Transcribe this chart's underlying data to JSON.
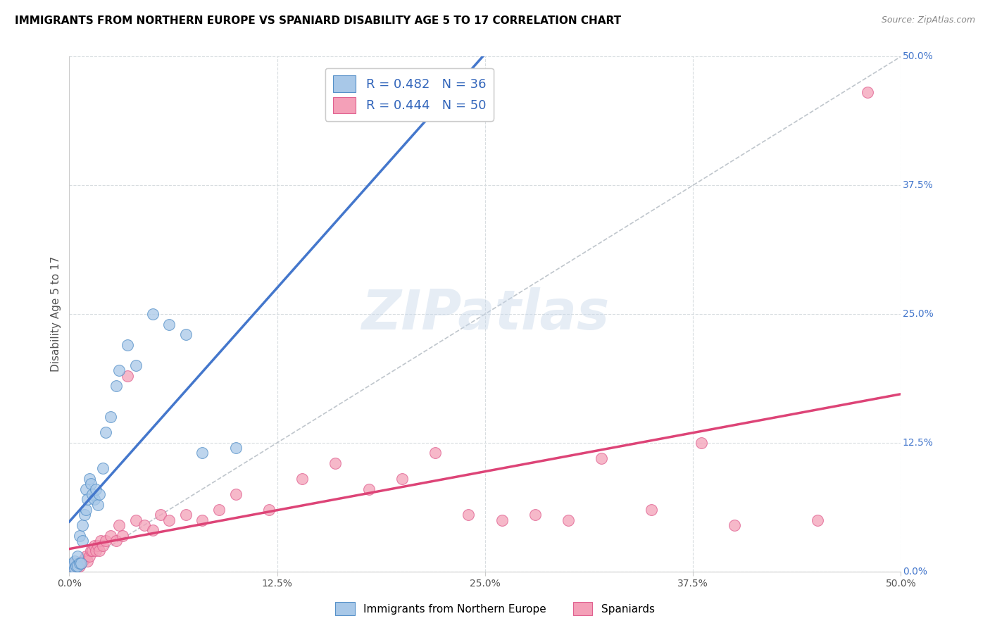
{
  "title": "IMMIGRANTS FROM NORTHERN EUROPE VS SPANIARD DISABILITY AGE 5 TO 17 CORRELATION CHART",
  "source": "Source: ZipAtlas.com",
  "ylabel": "Disability Age 5 to 17",
  "legend_label1": "R = 0.482   N = 36",
  "legend_label2": "R = 0.444   N = 50",
  "legend_bottom1": "Immigrants from Northern Europe",
  "legend_bottom2": "Spaniards",
  "blue_fill": "#a8c8e8",
  "pink_fill": "#f4a0b8",
  "blue_edge": "#5590c8",
  "pink_edge": "#e06090",
  "blue_line": "#4477cc",
  "pink_line": "#dd4477",
  "diagonal_color": "#b0b8c0",
  "blue_points": [
    [
      0.1,
      0.5
    ],
    [
      0.2,
      0.8
    ],
    [
      0.3,
      0.3
    ],
    [
      0.3,
      1.0
    ],
    [
      0.4,
      0.5
    ],
    [
      0.5,
      0.5
    ],
    [
      0.5,
      1.5
    ],
    [
      0.6,
      0.8
    ],
    [
      0.6,
      3.5
    ],
    [
      0.7,
      0.8
    ],
    [
      0.8,
      3.0
    ],
    [
      0.8,
      4.5
    ],
    [
      0.9,
      5.5
    ],
    [
      1.0,
      6.0
    ],
    [
      1.0,
      8.0
    ],
    [
      1.1,
      7.0
    ],
    [
      1.2,
      9.0
    ],
    [
      1.3,
      8.5
    ],
    [
      1.4,
      7.5
    ],
    [
      1.5,
      7.0
    ],
    [
      1.6,
      8.0
    ],
    [
      1.7,
      6.5
    ],
    [
      1.8,
      7.5
    ],
    [
      2.0,
      10.0
    ],
    [
      2.2,
      13.5
    ],
    [
      2.5,
      15.0
    ],
    [
      2.8,
      18.0
    ],
    [
      3.0,
      19.5
    ],
    [
      3.5,
      22.0
    ],
    [
      4.0,
      20.0
    ],
    [
      5.0,
      25.0
    ],
    [
      6.0,
      24.0
    ],
    [
      7.0,
      23.0
    ],
    [
      8.0,
      11.5
    ],
    [
      10.0,
      12.0
    ],
    [
      25.0,
      46.5
    ]
  ],
  "pink_points": [
    [
      0.2,
      0.5
    ],
    [
      0.3,
      0.8
    ],
    [
      0.4,
      0.5
    ],
    [
      0.5,
      0.8
    ],
    [
      0.6,
      0.5
    ],
    [
      0.7,
      0.8
    ],
    [
      0.8,
      1.0
    ],
    [
      0.9,
      1.2
    ],
    [
      1.0,
      1.5
    ],
    [
      1.1,
      1.0
    ],
    [
      1.2,
      1.5
    ],
    [
      1.3,
      2.0
    ],
    [
      1.4,
      2.0
    ],
    [
      1.5,
      2.5
    ],
    [
      1.6,
      2.0
    ],
    [
      1.7,
      2.5
    ],
    [
      1.8,
      2.0
    ],
    [
      1.9,
      3.0
    ],
    [
      2.0,
      2.5
    ],
    [
      2.2,
      3.0
    ],
    [
      2.5,
      3.5
    ],
    [
      2.8,
      3.0
    ],
    [
      3.0,
      4.5
    ],
    [
      3.2,
      3.5
    ],
    [
      3.5,
      19.0
    ],
    [
      4.0,
      5.0
    ],
    [
      4.5,
      4.5
    ],
    [
      5.0,
      4.0
    ],
    [
      5.5,
      5.5
    ],
    [
      6.0,
      5.0
    ],
    [
      7.0,
      5.5
    ],
    [
      8.0,
      5.0
    ],
    [
      9.0,
      6.0
    ],
    [
      10.0,
      7.5
    ],
    [
      12.0,
      6.0
    ],
    [
      14.0,
      9.0
    ],
    [
      16.0,
      10.5
    ],
    [
      18.0,
      8.0
    ],
    [
      20.0,
      9.0
    ],
    [
      22.0,
      11.5
    ],
    [
      24.0,
      5.5
    ],
    [
      26.0,
      5.0
    ],
    [
      28.0,
      5.5
    ],
    [
      30.0,
      5.0
    ],
    [
      32.0,
      11.0
    ],
    [
      35.0,
      6.0
    ],
    [
      38.0,
      12.5
    ],
    [
      40.0,
      4.5
    ],
    [
      45.0,
      5.0
    ],
    [
      48.0,
      46.5
    ]
  ]
}
